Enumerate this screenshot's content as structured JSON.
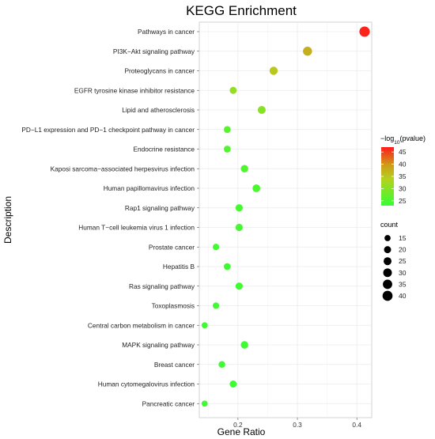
{
  "chart_data": {
    "type": "scatter",
    "title": "KEGG Enrichment",
    "xlabel": "Gene Ratio",
    "ylabel": "Description",
    "xlim": [
      0.135,
      0.425
    ],
    "xticks": [
      0.2,
      0.3,
      0.4
    ],
    "xtick_labels": [
      "0.2",
      "0.3",
      "0.4"
    ],
    "grid": true,
    "categories": [
      "Pathways in cancer",
      "PI3K−Akt signaling pathway",
      "Proteoglycans in cancer",
      "EGFR tyrosine kinase inhibitor resistance",
      "Lipid and atherosclerosis",
      "PD−L1 expression and PD−1 checkpoint pathway in cancer",
      "Endocrine resistance",
      "Kaposi sarcoma−associated herpesvirus infection",
      "Human papillomavirus infection",
      "Rap1 signaling pathway",
      "Human T−cell leukemia virus 1 infection",
      "Prostate cancer",
      "Hepatitis B",
      "Ras signaling pathway",
      "Toxoplasmosis",
      "Central carbon metabolism in cancer",
      "MAPK signaling pathway",
      "Breast cancer",
      "Human cytomegalovirus infection",
      "Pancreatic cancer"
    ],
    "gene_ratio": [
      0.413,
      0.317,
      0.26,
      0.192,
      0.24,
      0.182,
      0.182,
      0.211,
      0.231,
      0.202,
      0.202,
      0.163,
      0.182,
      0.202,
      0.163,
      0.144,
      0.211,
      0.173,
      0.192,
      0.144
    ],
    "count": [
      43,
      33,
      27,
      20,
      25,
      19,
      19,
      22,
      24,
      21,
      21,
      17,
      19,
      21,
      17,
      15,
      22,
      18,
      20,
      15
    ],
    "neg_log10_pvalue": [
      46.5,
      37.5,
      35,
      31,
      30,
      26,
      25.5,
      25.5,
      25,
      24.5,
      24.5,
      24,
      24,
      24,
      24,
      24,
      24,
      24,
      24,
      24
    ],
    "color_legend": {
      "title_prefix": "−log",
      "title_sub": "10",
      "title_suffix": "(pvalue)",
      "ticks": [
        45,
        40,
        35,
        30,
        25
      ],
      "range": [
        23,
        47
      ],
      "color_high": "#ff1a1a",
      "color_mid": "#c8c81e",
      "color_low": "#33ff33"
    },
    "size_legend": {
      "title": "count",
      "values": [
        15,
        20,
        25,
        30,
        35,
        40
      ]
    },
    "legend_placement": "right"
  }
}
